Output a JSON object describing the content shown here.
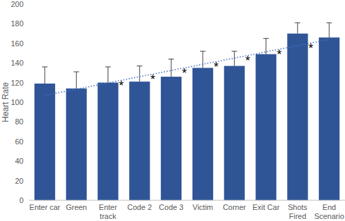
{
  "chart_data": {
    "type": "bar",
    "y_label": "Heart Rate",
    "categories": [
      "Enter car",
      "Green",
      "Enter track",
      "Code 2",
      "Code 3",
      "Victim",
      "Corner",
      "Exit Car",
      "Shots Fired",
      "End Scenario"
    ],
    "values": [
      119,
      114,
      120,
      121,
      126,
      135,
      137,
      149,
      170,
      166
    ],
    "errors": [
      17,
      17,
      16,
      16,
      18,
      17,
      15,
      16,
      11,
      15
    ],
    "annotations": [
      null,
      null,
      null,
      "*",
      "*",
      "*",
      "*",
      "*",
      "*",
      "*"
    ],
    "trendline": [
      107,
      164
    ],
    "color": "#2f5597",
    "ylim": [
      0,
      200
    ],
    "yticks": [
      0,
      20,
      40,
      60,
      80,
      100,
      120,
      140,
      160,
      180,
      200
    ],
    "grid": false
  }
}
